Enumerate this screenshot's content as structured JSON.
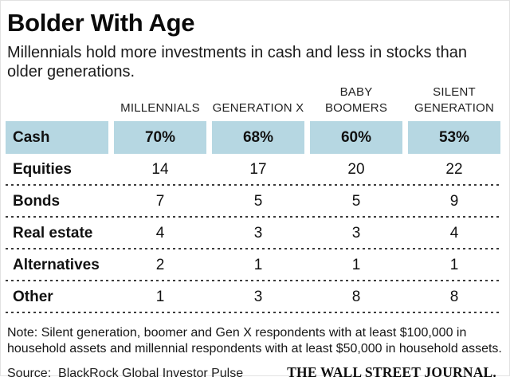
{
  "page": {
    "title": "Bolder With Age",
    "subtitle": "Millennials hold more investments in cash and less in stocks than older generations.",
    "note": "Note: Silent generation, boomer and Gen X respondents with at least $100,000 in household assets and millennial respondents with at least $50,000 in household assets.",
    "source": "Source:  BlackRock Global Investor Pulse",
    "credit": "THE WALL STREET JOURNAL."
  },
  "table": {
    "headers": [
      {
        "lines": [
          "MILLENNIALS"
        ]
      },
      {
        "lines": [
          "GENERATION X"
        ]
      },
      {
        "lines": [
          "BABY",
          "BOOMERS"
        ]
      },
      {
        "lines": [
          "SILENT",
          "GENERATION"
        ]
      }
    ]
  },
  "colors": {
    "highlight_blue": "#b6d7e2",
    "dash": "#3c3c3c"
  },
  "chart_data": {
    "type": "table",
    "title": "Bolder With Age",
    "subtitle": "Millennials hold more investments in cash and less in stocks than older generations.",
    "columns": [
      "MILLENNIALS",
      "GENERATION X",
      "BABY BOOMERS",
      "SILENT GENERATION"
    ],
    "rows": [
      {
        "label": "Cash",
        "values": [
          "70%",
          "68%",
          "60%",
          "53%"
        ],
        "highlighted": true
      },
      {
        "label": "Equities",
        "values": [
          "14",
          "17",
          "20",
          "22"
        ],
        "highlighted": false
      },
      {
        "label": "Bonds",
        "values": [
          "7",
          "5",
          "5",
          "9"
        ],
        "highlighted": false
      },
      {
        "label": "Real estate",
        "values": [
          "4",
          "3",
          "3",
          "4"
        ],
        "highlighted": false
      },
      {
        "label": "Alternatives",
        "values": [
          "2",
          "1",
          "1",
          "1"
        ],
        "highlighted": false
      },
      {
        "label": "Other",
        "values": [
          "1",
          "3",
          "8",
          "8"
        ],
        "highlighted": false
      }
    ],
    "note": "Note: Silent generation, boomer and Gen X respondents with at least $100,000 in household assets and millennial respondents with at least $50,000 in household assets.",
    "source": "BlackRock Global Investor Pulse",
    "credit": "THE WALL STREET JOURNAL.",
    "layout": {
      "highlight_row": "Cash",
      "separators": "dashed",
      "values_unit": "percent of portfolio"
    }
  }
}
